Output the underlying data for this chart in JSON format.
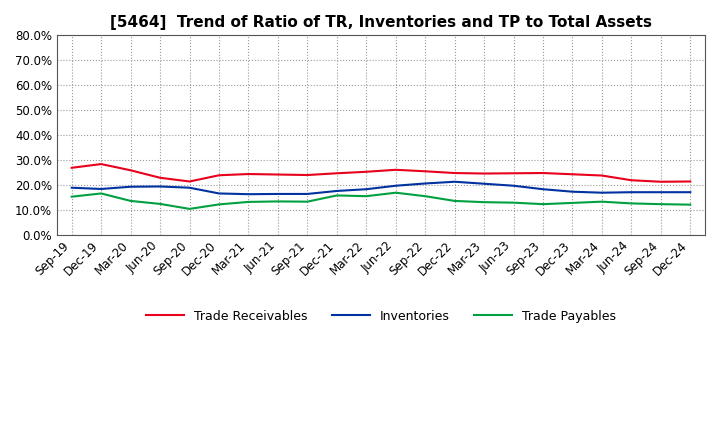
{
  "title": "[5464]  Trend of Ratio of TR, Inventories and TP to Total Assets",
  "x_labels": [
    "Sep-19",
    "Dec-19",
    "Mar-20",
    "Jun-20",
    "Sep-20",
    "Dec-20",
    "Mar-21",
    "Jun-21",
    "Sep-21",
    "Dec-21",
    "Mar-22",
    "Jun-22",
    "Sep-22",
    "Dec-22",
    "Mar-23",
    "Jun-23",
    "Sep-23",
    "Dec-23",
    "Mar-24",
    "Jun-24",
    "Sep-24",
    "Dec-24"
  ],
  "trade_receivables": [
    0.268,
    0.283,
    0.258,
    0.228,
    0.213,
    0.238,
    0.243,
    0.241,
    0.239,
    0.246,
    0.252,
    0.26,
    0.254,
    0.247,
    0.245,
    0.246,
    0.247,
    0.242,
    0.237,
    0.218,
    0.212,
    0.213
  ],
  "inventories": [
    0.188,
    0.183,
    0.192,
    0.193,
    0.188,
    0.165,
    0.162,
    0.163,
    0.163,
    0.175,
    0.182,
    0.196,
    0.205,
    0.212,
    0.204,
    0.196,
    0.182,
    0.172,
    0.168,
    0.17,
    0.17,
    0.17
  ],
  "trade_payables": [
    0.152,
    0.165,
    0.135,
    0.123,
    0.103,
    0.121,
    0.131,
    0.133,
    0.132,
    0.157,
    0.154,
    0.168,
    0.154,
    0.135,
    0.13,
    0.128,
    0.122,
    0.127,
    0.132,
    0.125,
    0.122,
    0.12
  ],
  "ylim": [
    0.0,
    0.8
  ],
  "yticks": [
    0.0,
    0.1,
    0.2,
    0.3,
    0.4,
    0.5,
    0.6,
    0.7,
    0.8
  ],
  "colors": {
    "trade_receivables": "#e8001c",
    "inventories": "#0032a0",
    "trade_payables": "#00a040"
  },
  "background_color": "#ffffff",
  "grid_color": "#999999",
  "title_fontsize": 11,
  "tick_fontsize": 8.5,
  "legend_fontsize": 9
}
